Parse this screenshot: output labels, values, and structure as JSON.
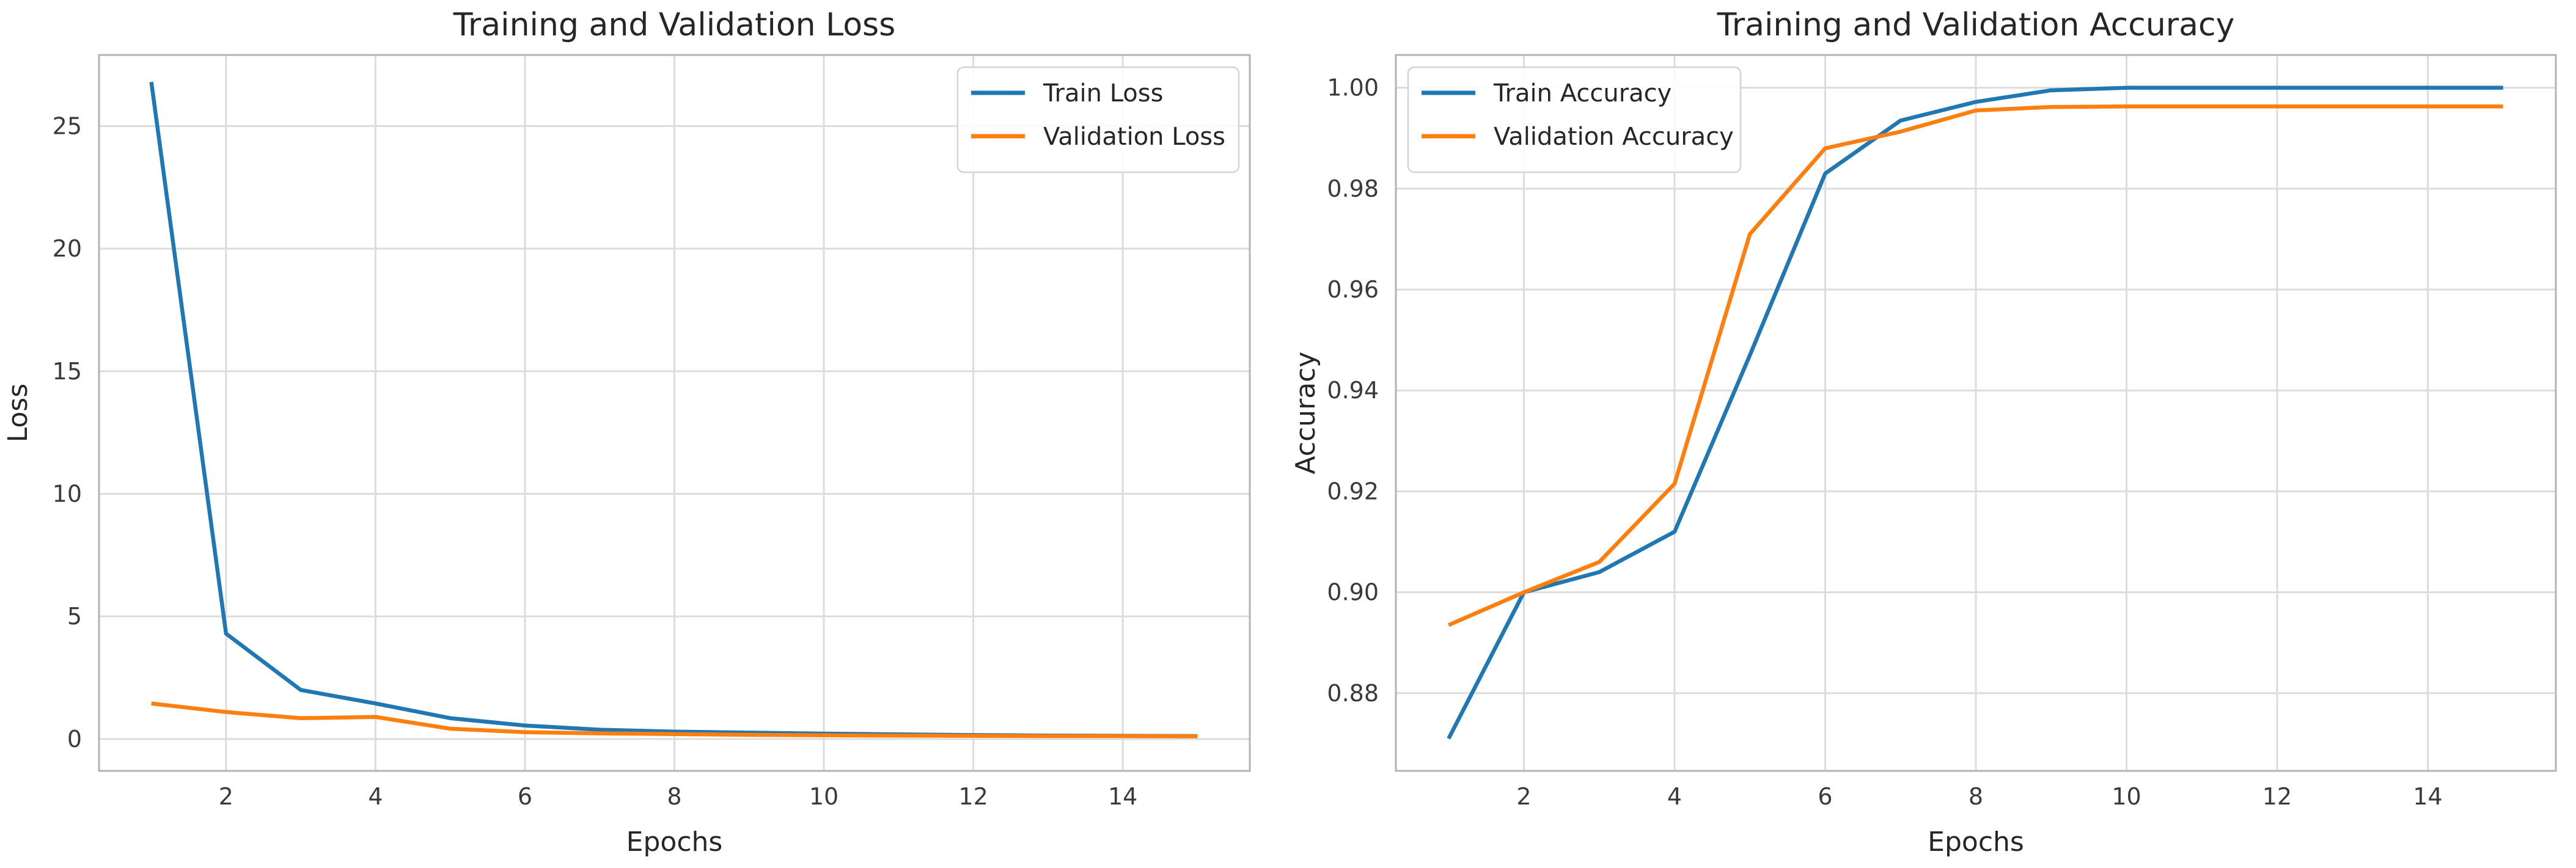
{
  "page": {
    "background": "#ffffff"
  },
  "styles": {
    "grid_color": "#dcdcdc",
    "spine_color": "#b3b3b3",
    "title_color": "#262626",
    "label_color": "#262626",
    "tick_color": "#3a3a3a",
    "legend_border": "#d4d4d4",
    "legend_bg": "#ffffff",
    "train_color": "#1f77b4",
    "val_color": "#ff7f0e"
  },
  "chart_data": [
    {
      "type": "line",
      "title": "Training and Validation Loss",
      "xlabel": "Epochs",
      "ylabel": "Loss",
      "x": [
        1,
        2,
        3,
        4,
        5,
        6,
        7,
        8,
        9,
        10,
        11,
        12,
        13,
        14,
        15
      ],
      "series": [
        {
          "name": "Train Loss",
          "color": "#1f77b4",
          "values": [
            26.8,
            4.3,
            2.0,
            1.45,
            0.85,
            0.55,
            0.38,
            0.3,
            0.26,
            0.22,
            0.19,
            0.16,
            0.14,
            0.13,
            0.12
          ]
        },
        {
          "name": "Validation Loss",
          "color": "#ff7f0e",
          "values": [
            1.45,
            1.1,
            0.85,
            0.9,
            0.42,
            0.28,
            0.23,
            0.2,
            0.17,
            0.15,
            0.14,
            0.13,
            0.12,
            0.12,
            0.11
          ]
        }
      ],
      "xlim": [
        0.3,
        15.7
      ],
      "ylim": [
        -1.3,
        27.9
      ],
      "xticks": [
        {
          "v": 2,
          "t": "2"
        },
        {
          "v": 4,
          "t": "4"
        },
        {
          "v": 6,
          "t": "6"
        },
        {
          "v": 8,
          "t": "8"
        },
        {
          "v": 10,
          "t": "10"
        },
        {
          "v": 12,
          "t": "12"
        },
        {
          "v": 14,
          "t": "14"
        }
      ],
      "yticks": [
        {
          "v": 0,
          "t": "0"
        },
        {
          "v": 5,
          "t": "5"
        },
        {
          "v": 10,
          "t": "10"
        },
        {
          "v": 15,
          "t": "15"
        },
        {
          "v": 20,
          "t": "20"
        },
        {
          "v": 25,
          "t": "25"
        }
      ],
      "grid": true,
      "legend": {
        "position": "upper-right",
        "labels": [
          "Train Loss",
          "Validation Loss"
        ]
      }
    },
    {
      "type": "line",
      "title": "Training and Validation Accuracy",
      "xlabel": "Epochs",
      "ylabel": "Accuracy",
      "x": [
        1,
        2,
        3,
        4,
        5,
        6,
        7,
        8,
        9,
        10,
        11,
        12,
        13,
        14,
        15
      ],
      "series": [
        {
          "name": "Train Accuracy",
          "color": "#1f77b4",
          "values": [
            0.871,
            0.9,
            0.904,
            0.912,
            0.947,
            0.983,
            0.9935,
            0.9972,
            0.9995,
            1.0,
            1.0,
            1.0,
            1.0,
            1.0,
            1.0
          ]
        },
        {
          "name": "Validation Accuracy",
          "color": "#ff7f0e",
          "values": [
            0.8935,
            0.9,
            0.906,
            0.9215,
            0.971,
            0.988,
            0.9913,
            0.9955,
            0.9962,
            0.9963,
            0.9963,
            0.9963,
            0.9963,
            0.9963,
            0.9963
          ]
        }
      ],
      "xlim": [
        0.3,
        15.7
      ],
      "ylim": [
        0.8646,
        1.0065
      ],
      "xticks": [
        {
          "v": 2,
          "t": "2"
        },
        {
          "v": 4,
          "t": "4"
        },
        {
          "v": 6,
          "t": "6"
        },
        {
          "v": 8,
          "t": "8"
        },
        {
          "v": 10,
          "t": "10"
        },
        {
          "v": 12,
          "t": "12"
        },
        {
          "v": 14,
          "t": "14"
        }
      ],
      "yticks": [
        {
          "v": 0.88,
          "t": "0.88"
        },
        {
          "v": 0.9,
          "t": "0.90"
        },
        {
          "v": 0.92,
          "t": "0.92"
        },
        {
          "v": 0.94,
          "t": "0.94"
        },
        {
          "v": 0.96,
          "t": "0.96"
        },
        {
          "v": 0.98,
          "t": "0.98"
        },
        {
          "v": 1.0,
          "t": "1.00"
        }
      ],
      "grid": true,
      "legend": {
        "position": "upper-left",
        "labels": [
          "Train Accuracy",
          "Validation Accuracy"
        ]
      }
    }
  ]
}
